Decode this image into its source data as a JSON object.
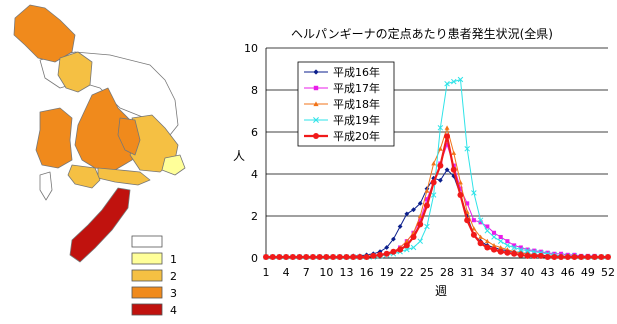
{
  "map": {
    "colors": {
      "0": "#ffffff",
      "1": "#ffff99",
      "2": "#f5c043",
      "3": "#f08a1c",
      "4": "#c0120e"
    },
    "legend": [
      {
        "level": "0",
        "label": ""
      },
      {
        "level": "1",
        "label": "1"
      },
      {
        "level": "2",
        "label": "2"
      },
      {
        "level": "3",
        "label": "3"
      },
      {
        "level": "4",
        "label": "4"
      }
    ]
  },
  "chart_data": {
    "type": "line",
    "title": "ヘルパンギーナの定点あたり患者発生状況(全県)",
    "xlabel": "週",
    "ylabel": "人",
    "ylim": [
      0,
      10
    ],
    "yticks": [
      0,
      2,
      4,
      6,
      8,
      10
    ],
    "xticks": [
      1,
      4,
      7,
      10,
      13,
      16,
      19,
      22,
      25,
      28,
      31,
      34,
      37,
      40,
      43,
      46,
      49,
      52
    ],
    "x": [
      1,
      2,
      3,
      4,
      5,
      6,
      7,
      8,
      9,
      10,
      11,
      12,
      13,
      14,
      15,
      16,
      17,
      18,
      19,
      20,
      21,
      22,
      23,
      24,
      25,
      26,
      27,
      28,
      29,
      30,
      31,
      32,
      33,
      34,
      35,
      36,
      37,
      38,
      39,
      40,
      41,
      42,
      43,
      44,
      45,
      46,
      47,
      48,
      49,
      50,
      51,
      52
    ],
    "grid": "horizontal",
    "legend_position": "top-left",
    "series": [
      {
        "name": "平成16年",
        "color": "#0b1f8c",
        "marker": "diamond",
        "values": [
          0.05,
          0.05,
          0.05,
          0.05,
          0.05,
          0.05,
          0.05,
          0.05,
          0.05,
          0.05,
          0.05,
          0.05,
          0.05,
          0.1,
          0.1,
          0.15,
          0.2,
          0.3,
          0.5,
          0.9,
          1.5,
          2.1,
          2.3,
          2.6,
          3.3,
          3.8,
          3.7,
          4.2,
          3.9,
          3.0,
          2.0,
          1.1,
          0.8,
          0.6,
          0.5,
          0.4,
          0.35,
          0.3,
          0.25,
          0.2,
          0.15,
          0.15,
          0.1,
          0.1,
          0.1,
          0.05,
          0.05,
          0.05,
          0.05,
          0.05,
          0.05,
          0.05
        ]
      },
      {
        "name": "平成17年",
        "color": "#e81ce8",
        "marker": "square",
        "values": [
          0.05,
          0.05,
          0.05,
          0.05,
          0.05,
          0.05,
          0.05,
          0.05,
          0.05,
          0.05,
          0.05,
          0.05,
          0.05,
          0.05,
          0.05,
          0.05,
          0.1,
          0.15,
          0.2,
          0.3,
          0.5,
          0.8,
          1.2,
          1.8,
          2.8,
          3.6,
          4.5,
          5.4,
          4.4,
          3.3,
          2.6,
          1.8,
          1.7,
          1.5,
          1.2,
          1.0,
          0.8,
          0.6,
          0.5,
          0.4,
          0.35,
          0.3,
          0.25,
          0.2,
          0.2,
          0.15,
          0.15,
          0.1,
          0.1,
          0.1,
          0.05,
          0.05
        ]
      },
      {
        "name": "平成18年",
        "color": "#f27318",
        "marker": "triangle",
        "values": [
          0.05,
          0.05,
          0.05,
          0.05,
          0.05,
          0.05,
          0.05,
          0.05,
          0.05,
          0.05,
          0.05,
          0.05,
          0.05,
          0.05,
          0.05,
          0.05,
          0.1,
          0.15,
          0.2,
          0.3,
          0.5,
          0.8,
          1.2,
          2.0,
          3.2,
          4.5,
          5.2,
          6.2,
          5.0,
          3.6,
          2.2,
          1.4,
          1.0,
          0.8,
          0.6,
          0.5,
          0.4,
          0.3,
          0.25,
          0.2,
          0.15,
          0.1,
          0.1,
          0.1,
          0.05,
          0.05,
          0.05,
          0.05,
          0.05,
          0.05,
          0.05,
          0.05
        ]
      },
      {
        "name": "平成19年",
        "color": "#2ee3e8",
        "marker": "x",
        "values": [
          0.05,
          0.05,
          0.05,
          0.05,
          0.05,
          0.05,
          0.05,
          0.05,
          0.05,
          0.05,
          0.05,
          0.05,
          0.05,
          0.05,
          0.05,
          0.05,
          0.05,
          0.1,
          0.15,
          0.2,
          0.3,
          0.4,
          0.5,
          0.8,
          1.5,
          3.0,
          6.2,
          8.3,
          8.4,
          8.5,
          5.2,
          3.1,
          1.8,
          1.3,
          1.0,
          0.8,
          0.6,
          0.5,
          0.4,
          0.35,
          0.3,
          0.25,
          0.2,
          0.15,
          0.1,
          0.1,
          0.1,
          0.05,
          0.05,
          0.05,
          0.05,
          0.05
        ]
      },
      {
        "name": "平成20年",
        "color": "#f01a1a",
        "marker": "circle",
        "bold": true,
        "values": [
          0.05,
          0.05,
          0.05,
          0.05,
          0.05,
          0.05,
          0.05,
          0.05,
          0.05,
          0.05,
          0.05,
          0.05,
          0.05,
          0.05,
          0.05,
          0.05,
          0.1,
          0.15,
          0.2,
          0.3,
          0.4,
          0.6,
          1.0,
          1.6,
          2.5,
          3.6,
          4.4,
          5.8,
          4.2,
          3.0,
          1.8,
          1.1,
          0.7,
          0.5,
          0.4,
          0.3,
          0.25,
          0.2,
          0.15,
          0.1,
          0.1,
          0.1,
          0.05,
          0.05,
          0.05,
          0.05,
          0.05,
          0.05,
          0.05,
          0.05,
          0.05,
          0.05
        ]
      }
    ]
  }
}
